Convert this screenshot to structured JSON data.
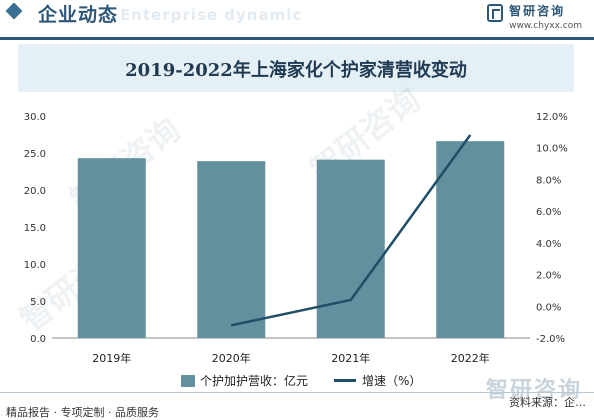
{
  "header": {
    "section_title": "企业动态",
    "section_subtitle": "Enterprise dynamic",
    "brand_name": "智研咨询",
    "brand_url": "www.chyxx.com"
  },
  "watermark_text": "智研咨询",
  "corner_logo": "智研咨询",
  "footer": {
    "left": "精品报告 · 专项定制 · 品质服务",
    "right": "资料来源：企…"
  },
  "colors": {
    "bar": "#62909f",
    "line": "#1f4e67",
    "accent": "#2d5677"
  },
  "chart_data": {
    "type": "bar",
    "title": "2019-2022年上海家化个护家清营收变动",
    "categories": [
      "2019年",
      "2020年",
      "2021年",
      "2022年"
    ],
    "series": [
      {
        "name": "个护加护营收：亿元",
        "type": "bar",
        "axis": "left",
        "values": [
          24.3,
          23.9,
          24.1,
          26.6
        ]
      },
      {
        "name": "增速（%）",
        "type": "line",
        "axis": "right",
        "values": [
          null,
          -1.2,
          0.4,
          10.8
        ]
      }
    ],
    "ylim_left": [
      0,
      30
    ],
    "yticks_left": [
      "0.0",
      "5.0",
      "10.0",
      "15.0",
      "20.0",
      "25.0",
      "30.0"
    ],
    "ylim_right": [
      -2,
      12
    ],
    "yticks_right": [
      "-2.0%",
      "0.0%",
      "2.0%",
      "4.0%",
      "6.0%",
      "8.0%",
      "10.0%",
      "12.0%"
    ],
    "grid": false,
    "legend_position": "bottom"
  }
}
